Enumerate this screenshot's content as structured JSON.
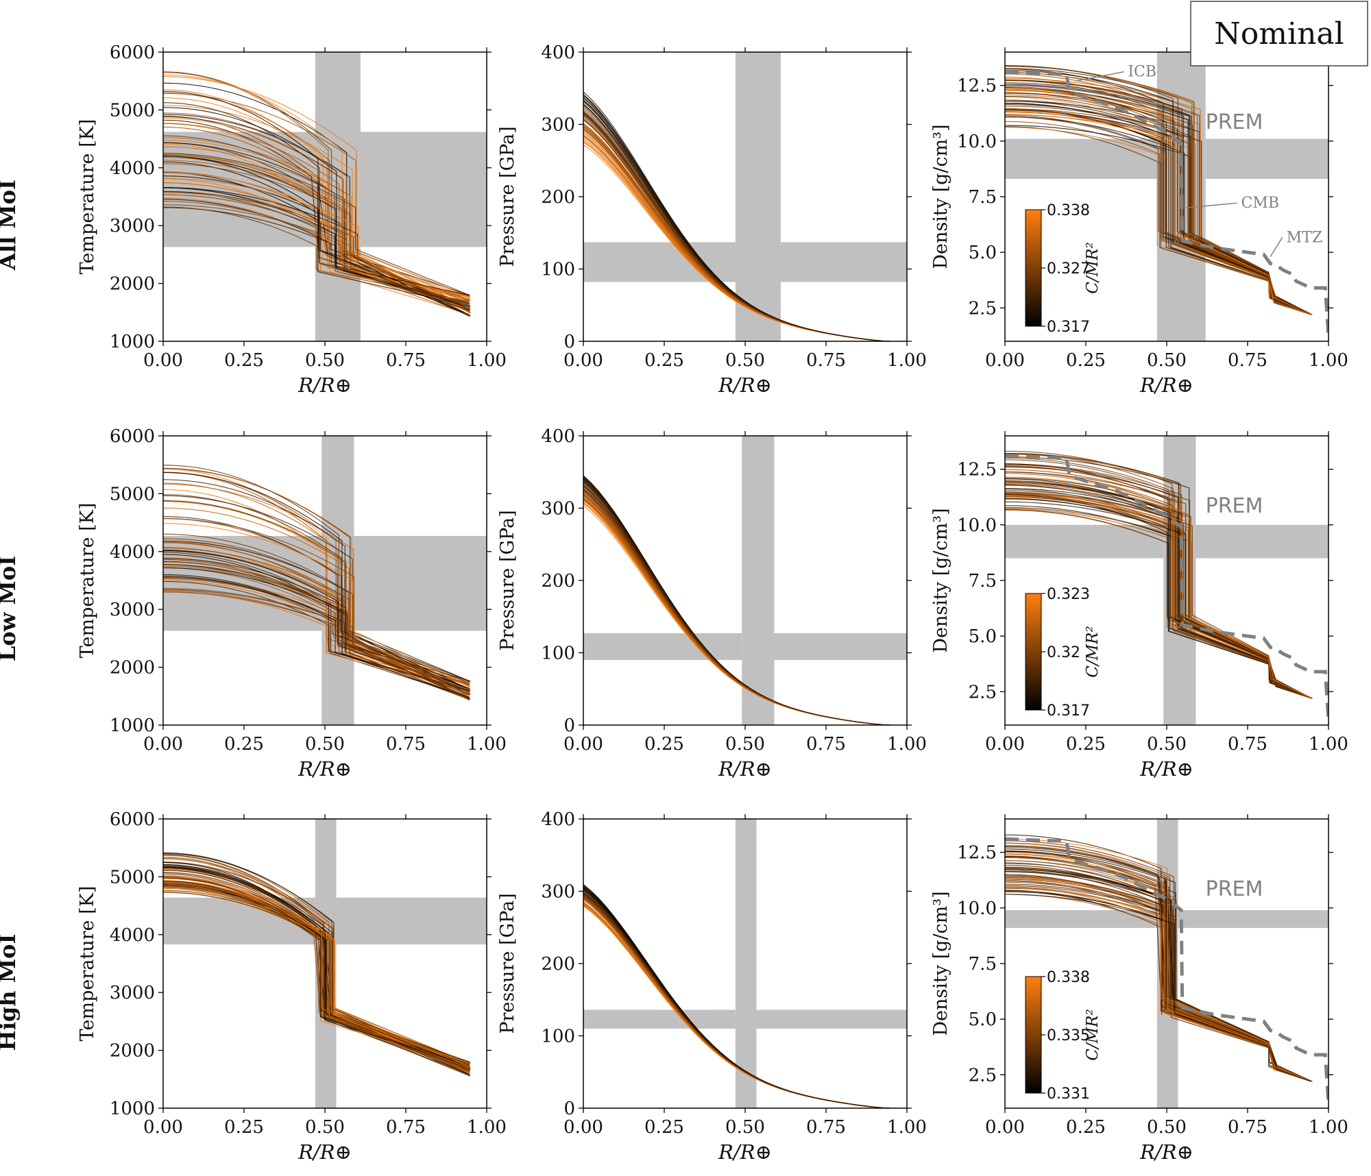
{
  "scenario_label": "Nominal",
  "row_labels": [
    "All MoI",
    "Low MoI",
    "High MoI"
  ],
  "x_axis": {
    "label": "R/R⊕",
    "ticks": [
      "0.00",
      "0.25",
      "0.50",
      "0.75",
      "1.00"
    ],
    "lim": [
      0.0,
      1.0
    ]
  },
  "colormap": {
    "low_color": "#000000",
    "high_color": "#ff7f0e",
    "label": "C/MR²"
  },
  "prem_label": "PREM",
  "annotations": {
    "icb": "ICB",
    "cmb": "CMB",
    "mtz": "MTZ"
  },
  "band_color": "#c0c0c0",
  "chart_data": [
    {
      "type": "line",
      "row": "All MoI",
      "variable": "temperature",
      "ylabel": "Temperature [K]",
      "ylim": [
        1000,
        6000
      ],
      "yticks": [
        "1000",
        "2000",
        "3000",
        "4000",
        "5000",
        "6000"
      ],
      "vband": [
        0.47,
        0.61
      ],
      "hband": [
        2630,
        4620
      ],
      "core_radius_range": [
        0.47,
        0.61
      ],
      "center_range": [
        3300,
        5700
      ],
      "cmb_top_range": [
        2650,
        4300
      ],
      "mantle_top_range": [
        2200,
        2600
      ],
      "surface_range": [
        1430,
        1800
      ]
    },
    {
      "type": "line",
      "row": "All MoI",
      "variable": "pressure",
      "ylabel": "Pressure [GPa]",
      "ylim": [
        0,
        400
      ],
      "yticks": [
        "0",
        "100",
        "200",
        "300",
        "400"
      ],
      "vband": [
        0.47,
        0.61
      ],
      "hband": [
        82,
        137
      ],
      "center_range": [
        270,
        350
      ]
    },
    {
      "type": "line",
      "row": "All MoI",
      "variable": "density",
      "ylabel": "Density [g/cm³]",
      "ylim": [
        1.0,
        14.0
      ],
      "yticks": [
        "2.5",
        "5.0",
        "7.5",
        "10.0",
        "12.5"
      ],
      "vband": [
        0.47,
        0.62
      ],
      "hband": [
        8.3,
        10.1
      ],
      "core_radius_range": [
        0.47,
        0.61
      ],
      "colorbar": {
        "min": "0.317",
        "mid": "0.327",
        "max": "0.338"
      },
      "prem": {
        "x": [
          0.0,
          0.19,
          0.2,
          0.35,
          0.5,
          0.545,
          0.548,
          0.55,
          0.65,
          0.8,
          0.82,
          0.84,
          0.86,
          0.89,
          0.9,
          0.93,
          0.95,
          0.99,
          1.0
        ],
        "y": [
          13.1,
          13.0,
          12.2,
          11.5,
          10.4,
          9.9,
          5.6,
          5.5,
          5.2,
          4.9,
          4.5,
          4.4,
          4.2,
          4.0,
          3.7,
          3.5,
          3.4,
          3.4,
          1.2
        ]
      },
      "show_annotations": true
    },
    {
      "type": "line",
      "row": "Low MoI",
      "variable": "temperature",
      "ylabel": "Temperature [K]",
      "ylim": [
        1000,
        6000
      ],
      "yticks": [
        "1000",
        "2000",
        "3000",
        "4000",
        "5000",
        "6000"
      ],
      "vband": [
        0.49,
        0.59
      ],
      "hband": [
        2630,
        4270
      ],
      "core_radius_range": [
        0.5,
        0.59
      ],
      "center_range": [
        3300,
        5500
      ],
      "cmb_top_range": [
        2700,
        4300
      ],
      "mantle_top_range": [
        2150,
        2650
      ],
      "surface_range": [
        1430,
        1780
      ]
    },
    {
      "type": "line",
      "row": "Low MoI",
      "variable": "pressure",
      "ylabel": "Pressure [GPa]",
      "ylim": [
        0,
        400
      ],
      "yticks": [
        "0",
        "100",
        "200",
        "300",
        "400"
      ],
      "vband": [
        0.49,
        0.59
      ],
      "hband": [
        90,
        127
      ],
      "center_range": [
        302,
        350
      ]
    },
    {
      "type": "line",
      "row": "Low MoI",
      "variable": "density",
      "ylabel": "Density [g/cm³]",
      "ylim": [
        1.0,
        14.0
      ],
      "yticks": [
        "2.5",
        "5.0",
        "7.5",
        "10.0",
        "12.5"
      ],
      "vband": [
        0.49,
        0.59
      ],
      "hband": [
        8.5,
        10.0
      ],
      "core_radius_range": [
        0.5,
        0.58
      ],
      "colorbar": {
        "min": "0.317",
        "mid": "0.32",
        "max": "0.323"
      },
      "prem": {
        "x": [
          0.0,
          0.19,
          0.2,
          0.35,
          0.5,
          0.545,
          0.548,
          0.55,
          0.65,
          0.8,
          0.82,
          0.84,
          0.86,
          0.89,
          0.9,
          0.93,
          0.95,
          0.99,
          1.0
        ],
        "y": [
          13.1,
          13.0,
          12.2,
          11.5,
          10.4,
          9.9,
          5.6,
          5.5,
          5.2,
          4.9,
          4.5,
          4.4,
          4.2,
          4.0,
          3.7,
          3.5,
          3.4,
          3.4,
          1.2
        ]
      },
      "show_annotations": false
    },
    {
      "type": "line",
      "row": "High MoI",
      "variable": "temperature",
      "ylabel": "Temperature [K]",
      "ylim": [
        1000,
        6000
      ],
      "yticks": [
        "1000",
        "2000",
        "3000",
        "4000",
        "5000",
        "6000"
      ],
      "vband": [
        0.47,
        0.535
      ],
      "hband": [
        3830,
        4640
      ],
      "core_radius_range": [
        0.48,
        0.53
      ],
      "center_range": [
        4700,
        5450
      ],
      "cmb_top_range": [
        3900,
        5100
      ],
      "mantle_top_range": [
        2500,
        2750
      ],
      "surface_range": [
        1550,
        1800
      ]
    },
    {
      "type": "line",
      "row": "High MoI",
      "variable": "pressure",
      "ylabel": "Pressure [GPa]",
      "ylim": [
        0,
        400
      ],
      "yticks": [
        "0",
        "100",
        "200",
        "300",
        "400"
      ],
      "vband": [
        0.47,
        0.535
      ],
      "hband": [
        110,
        136
      ],
      "center_range": [
        278,
        310
      ]
    },
    {
      "type": "line",
      "row": "High MoI",
      "variable": "density",
      "ylabel": "Density [g/cm³]",
      "ylim": [
        1.0,
        14.0
      ],
      "yticks": [
        "2.5",
        "5.0",
        "7.5",
        "10.0",
        "12.5"
      ],
      "vband": [
        0.47,
        0.535
      ],
      "hband": [
        9.1,
        9.9
      ],
      "core_radius_range": [
        0.48,
        0.53
      ],
      "colorbar": {
        "min": "0.331",
        "mid": "0.335",
        "max": "0.338"
      },
      "prem": {
        "x": [
          0.0,
          0.19,
          0.2,
          0.35,
          0.5,
          0.545,
          0.548,
          0.55,
          0.65,
          0.8,
          0.82,
          0.84,
          0.86,
          0.89,
          0.9,
          0.93,
          0.95,
          0.99,
          1.0
        ],
        "y": [
          13.1,
          13.0,
          12.2,
          11.5,
          10.4,
          9.9,
          5.6,
          5.5,
          5.2,
          4.9,
          4.5,
          4.4,
          4.2,
          4.0,
          3.7,
          3.5,
          3.4,
          3.4,
          1.2
        ]
      },
      "show_annotations": false
    }
  ]
}
